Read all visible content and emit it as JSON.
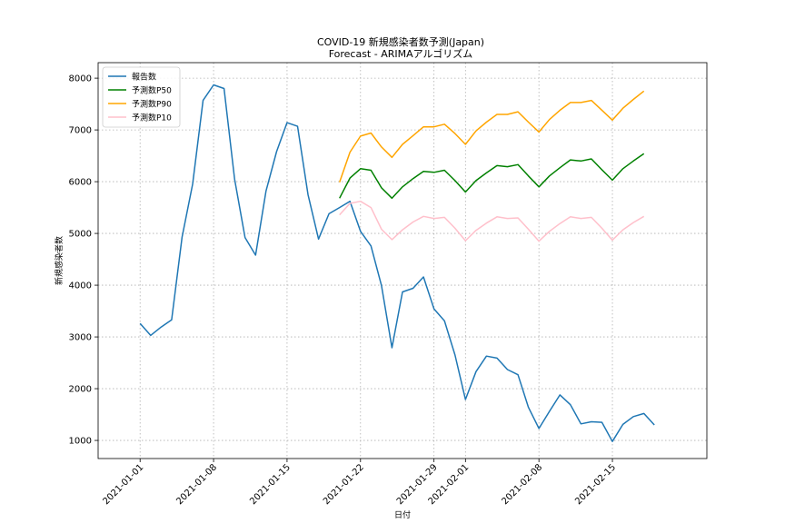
{
  "chart_data": {
    "type": "line",
    "title": "COVID-19 新規感染者数予測(Japan)",
    "subtitle": "Forecast - ARIMAアルゴリズム",
    "xlabel": "日付",
    "ylabel": "新規感染者数",
    "x_ticks": [
      "2021-01-01",
      "2021-01-08",
      "2021-01-15",
      "2021-01-22",
      "2021-01-29",
      "2021-02-01",
      "2021-02-08",
      "2021-02-15"
    ],
    "y_ticks": [
      1000,
      2000,
      3000,
      4000,
      5000,
      6000,
      7000,
      8000
    ],
    "xlim": [
      "2020-12-28",
      "2021-02-24"
    ],
    "ylim": [
      650,
      8300
    ],
    "grid": true,
    "legend_position": "top-left",
    "series": [
      {
        "name": "報告数",
        "color": "#1f77b4",
        "x": [
          "2021-01-01",
          "2021-01-02",
          "2021-01-03",
          "2021-01-04",
          "2021-01-05",
          "2021-01-06",
          "2021-01-07",
          "2021-01-08",
          "2021-01-09",
          "2021-01-10",
          "2021-01-11",
          "2021-01-12",
          "2021-01-13",
          "2021-01-14",
          "2021-01-15",
          "2021-01-16",
          "2021-01-17",
          "2021-01-18",
          "2021-01-19",
          "2021-01-20",
          "2021-01-21",
          "2021-01-22",
          "2021-01-23",
          "2021-01-24",
          "2021-01-25",
          "2021-01-26",
          "2021-01-27",
          "2021-01-28",
          "2021-01-29",
          "2021-01-30",
          "2021-01-31",
          "2021-02-01",
          "2021-02-02",
          "2021-02-03",
          "2021-02-04",
          "2021-02-05",
          "2021-02-06",
          "2021-02-07",
          "2021-02-08",
          "2021-02-09",
          "2021-02-10",
          "2021-02-11",
          "2021-02-12",
          "2021-02-13",
          "2021-02-14",
          "2021-02-15",
          "2021-02-16",
          "2021-02-17",
          "2021-02-18",
          "2021-02-19"
        ],
        "values": [
          3260,
          3030,
          3190,
          3330,
          4930,
          5950,
          7570,
          7870,
          7800,
          6050,
          4920,
          4580,
          5820,
          6580,
          7140,
          7070,
          5750,
          4890,
          5380,
          5500,
          5620,
          5040,
          4760,
          3990,
          2790,
          3870,
          3940,
          4160,
          3540,
          3310,
          2650,
          1790,
          2330,
          2630,
          2590,
          2370,
          2270,
          1640,
          1230,
          1560,
          1880,
          1690,
          1320,
          1360,
          1350,
          980,
          1310,
          1460,
          1520,
          1300
        ]
      },
      {
        "name": "予測数P50",
        "color": "#008000",
        "x": [
          "2021-01-20",
          "2021-01-21",
          "2021-01-22",
          "2021-01-23",
          "2021-01-24",
          "2021-01-25",
          "2021-01-26",
          "2021-01-27",
          "2021-01-28",
          "2021-01-29",
          "2021-01-30",
          "2021-01-31",
          "2021-02-01",
          "2021-02-02",
          "2021-02-03",
          "2021-02-04",
          "2021-02-05",
          "2021-02-06",
          "2021-02-07",
          "2021-02-08",
          "2021-02-09",
          "2021-02-10",
          "2021-02-11",
          "2021-02-12",
          "2021-02-13",
          "2021-02-14",
          "2021-02-15",
          "2021-02-16",
          "2021-02-17",
          "2021-02-18"
        ],
        "values": [
          5680,
          6070,
          6250,
          6220,
          5880,
          5680,
          5900,
          6060,
          6200,
          6180,
          6220,
          6020,
          5800,
          6020,
          6170,
          6310,
          6290,
          6330,
          6110,
          5900,
          6110,
          6270,
          6420,
          6400,
          6440,
          6230,
          6030,
          6250,
          6400,
          6540
        ]
      },
      {
        "name": "予測数P90",
        "color": "#ffa500",
        "x": [
          "2021-01-20",
          "2021-01-21",
          "2021-01-22",
          "2021-01-23",
          "2021-01-24",
          "2021-01-25",
          "2021-01-26",
          "2021-01-27",
          "2021-01-28",
          "2021-01-29",
          "2021-01-30",
          "2021-01-31",
          "2021-02-01",
          "2021-02-02",
          "2021-02-03",
          "2021-02-04",
          "2021-02-05",
          "2021-02-06",
          "2021-02-07",
          "2021-02-08",
          "2021-02-09",
          "2021-02-10",
          "2021-02-11",
          "2021-02-12",
          "2021-02-13",
          "2021-02-14",
          "2021-02-15",
          "2021-02-16",
          "2021-02-17",
          "2021-02-18"
        ],
        "values": [
          5990,
          6570,
          6880,
          6940,
          6670,
          6470,
          6720,
          6890,
          7060,
          7060,
          7110,
          6930,
          6720,
          6980,
          7150,
          7300,
          7300,
          7350,
          7150,
          6960,
          7200,
          7380,
          7530,
          7530,
          7570,
          7380,
          7190,
          7420,
          7590,
          7750
        ]
      },
      {
        "name": "予測数P10",
        "color": "#ffc0cb",
        "x": [
          "2021-01-20",
          "2021-01-21",
          "2021-01-22",
          "2021-01-23",
          "2021-01-24",
          "2021-01-25",
          "2021-01-26",
          "2021-01-27",
          "2021-01-28",
          "2021-01-29",
          "2021-01-30",
          "2021-01-31",
          "2021-02-01",
          "2021-02-02",
          "2021-02-03",
          "2021-02-04",
          "2021-02-05",
          "2021-02-06",
          "2021-02-07",
          "2021-02-08",
          "2021-02-09",
          "2021-02-10",
          "2021-02-11",
          "2021-02-12",
          "2021-02-13",
          "2021-02-14",
          "2021-02-15",
          "2021-02-16",
          "2021-02-17",
          "2021-02-18"
        ],
        "values": [
          5360,
          5580,
          5620,
          5500,
          5080,
          4880,
          5070,
          5220,
          5330,
          5290,
          5310,
          5100,
          4860,
          5060,
          5200,
          5320,
          5290,
          5300,
          5080,
          4850,
          5040,
          5190,
          5320,
          5290,
          5310,
          5100,
          4870,
          5070,
          5210,
          5330
        ]
      }
    ]
  }
}
